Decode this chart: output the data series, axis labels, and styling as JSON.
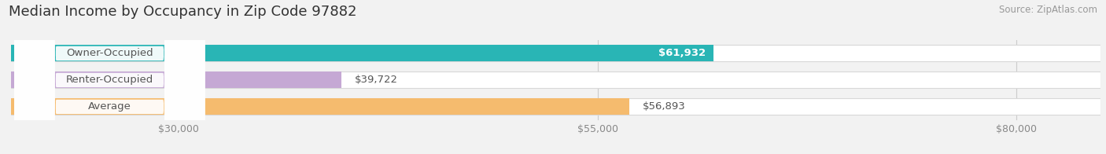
{
  "title": "Median Income by Occupancy in Zip Code 97882",
  "source": "Source: ZipAtlas.com",
  "categories": [
    "Owner-Occupied",
    "Renter-Occupied",
    "Average"
  ],
  "values": [
    61932,
    39722,
    56893
  ],
  "bar_colors": [
    "#29b5b5",
    "#c5a8d4",
    "#f5bb6e"
  ],
  "value_labels": [
    "$61,932",
    "$39,722",
    "$56,893"
  ],
  "value_label_white": [
    true,
    false,
    false
  ],
  "xmin": 20000,
  "xmax": 85000,
  "xticks": [
    30000,
    55000,
    80000
  ],
  "xtick_labels": [
    "$30,000",
    "$55,000",
    "$80,000"
  ],
  "bar_height": 0.62,
  "background_color": "#f2f2f2",
  "title_fontsize": 13,
  "label_fontsize": 9.5,
  "tick_fontsize": 9,
  "source_fontsize": 8.5
}
